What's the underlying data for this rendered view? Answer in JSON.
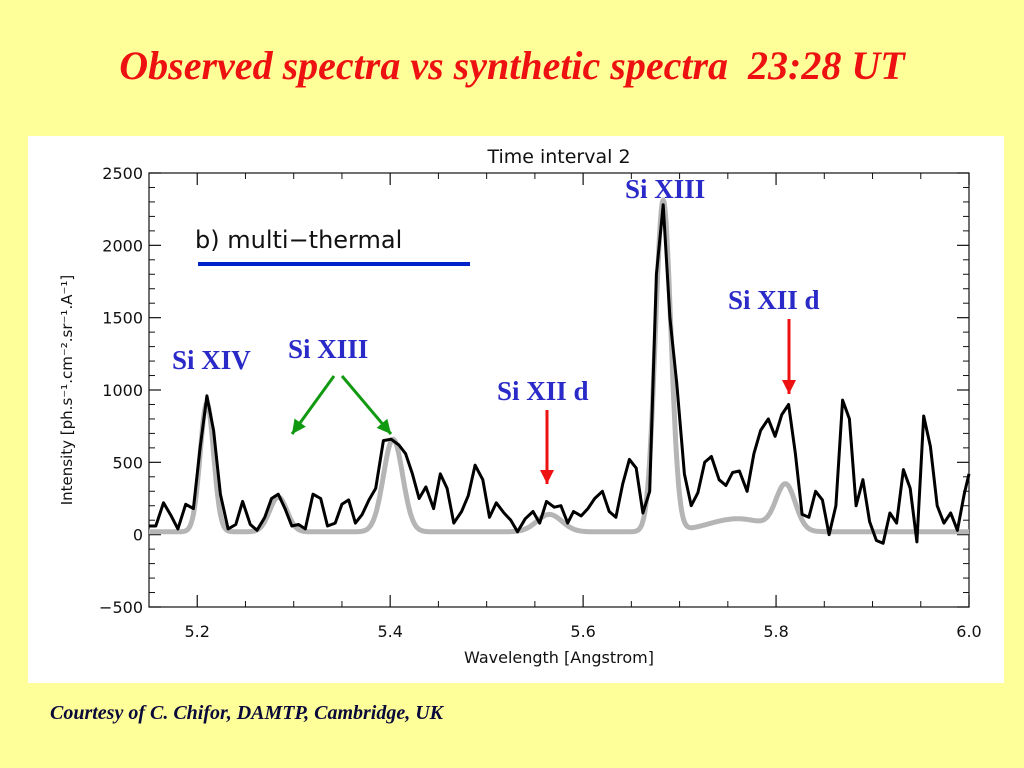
{
  "slide": {
    "title": "Observed spectra vs synthetic spectra  23:28 UT",
    "credit": "Courtesy of C. Chifor, DAMTP, Cambridge, UK"
  },
  "chart_data": {
    "type": "line",
    "title": "Time interval 2",
    "xlabel": "Wavelength  [Angstrom]",
    "ylabel": "Intensity  [ph.s⁻¹.cm⁻².sr⁻¹.A⁻¹]",
    "xlim": [
      5.15,
      6.0
    ],
    "ylim": [
      -500,
      2500
    ],
    "x_ticks": [
      5.2,
      5.4,
      5.6,
      5.8,
      6.0
    ],
    "x_tick_labels": [
      "5.2",
      "5.4",
      "5.6",
      "5.8",
      "6.0"
    ],
    "y_ticks": [
      -500,
      0,
      500,
      1000,
      1500,
      2000,
      2500
    ],
    "y_tick_labels": [
      "−500",
      "0",
      "500",
      "1000",
      "1500",
      "2000",
      "2500"
    ],
    "grid": false,
    "legend": {
      "label": "b) multi−thermal",
      "color": "#0022CC",
      "placement": "top-left"
    },
    "series": [
      {
        "style": "observed",
        "color": "#000000",
        "points": [
          [
            5.15,
            60
          ],
          [
            5.157,
            60
          ],
          [
            5.165,
            220
          ],
          [
            5.173,
            130
          ],
          [
            5.18,
            40
          ],
          [
            5.188,
            210
          ],
          [
            5.196,
            180
          ],
          [
            5.203,
            600
          ],
          [
            5.21,
            960
          ],
          [
            5.217,
            720
          ],
          [
            5.224,
            280
          ],
          [
            5.232,
            40
          ],
          [
            5.24,
            70
          ],
          [
            5.247,
            230
          ],
          [
            5.255,
            70
          ],
          [
            5.262,
            30
          ],
          [
            5.27,
            120
          ],
          [
            5.277,
            250
          ],
          [
            5.284,
            280
          ],
          [
            5.291,
            180
          ],
          [
            5.298,
            60
          ],
          [
            5.305,
            70
          ],
          [
            5.312,
            40
          ],
          [
            5.32,
            280
          ],
          [
            5.328,
            250
          ],
          [
            5.335,
            60
          ],
          [
            5.343,
            80
          ],
          [
            5.35,
            210
          ],
          [
            5.357,
            240
          ],
          [
            5.364,
            80
          ],
          [
            5.371,
            140
          ],
          [
            5.378,
            240
          ],
          [
            5.385,
            320
          ],
          [
            5.393,
            650
          ],
          [
            5.401,
            660
          ],
          [
            5.409,
            620
          ],
          [
            5.416,
            560
          ],
          [
            5.423,
            420
          ],
          [
            5.43,
            250
          ],
          [
            5.437,
            330
          ],
          [
            5.445,
            180
          ],
          [
            5.452,
            420
          ],
          [
            5.459,
            320
          ],
          [
            5.466,
            80
          ],
          [
            5.474,
            160
          ],
          [
            5.481,
            270
          ],
          [
            5.488,
            480
          ],
          [
            5.496,
            380
          ],
          [
            5.503,
            120
          ],
          [
            5.51,
            220
          ],
          [
            5.518,
            150
          ],
          [
            5.525,
            100
          ],
          [
            5.532,
            20
          ],
          [
            5.54,
            110
          ],
          [
            5.548,
            160
          ],
          [
            5.555,
            80
          ],
          [
            5.562,
            230
          ],
          [
            5.57,
            190
          ],
          [
            5.577,
            200
          ],
          [
            5.584,
            80
          ],
          [
            5.59,
            160
          ],
          [
            5.598,
            130
          ],
          [
            5.605,
            180
          ],
          [
            5.612,
            250
          ],
          [
            5.62,
            300
          ],
          [
            5.627,
            160
          ],
          [
            5.634,
            120
          ],
          [
            5.641,
            350
          ],
          [
            5.648,
            520
          ],
          [
            5.655,
            460
          ],
          [
            5.662,
            150
          ],
          [
            5.669,
            300
          ],
          [
            5.676,
            1800
          ],
          [
            5.683,
            2280
          ],
          [
            5.69,
            1500
          ],
          [
            5.697,
            1050
          ],
          [
            5.705,
            420
          ],
          [
            5.712,
            200
          ],
          [
            5.719,
            290
          ],
          [
            5.726,
            500
          ],
          [
            5.733,
            540
          ],
          [
            5.741,
            380
          ],
          [
            5.748,
            340
          ],
          [
            5.755,
            430
          ],
          [
            5.762,
            440
          ],
          [
            5.77,
            300
          ],
          [
            5.777,
            560
          ],
          [
            5.784,
            720
          ],
          [
            5.792,
            800
          ],
          [
            5.799,
            680
          ],
          [
            5.806,
            830
          ],
          [
            5.813,
            900
          ],
          [
            5.82,
            560
          ],
          [
            5.827,
            140
          ],
          [
            5.834,
            120
          ],
          [
            5.841,
            300
          ],
          [
            5.848,
            240
          ],
          [
            5.855,
            0
          ],
          [
            5.862,
            200
          ],
          [
            5.869,
            930
          ],
          [
            5.876,
            800
          ],
          [
            5.883,
            200
          ],
          [
            5.89,
            380
          ],
          [
            5.897,
            90
          ],
          [
            5.904,
            -40
          ],
          [
            5.911,
            -60
          ],
          [
            5.918,
            150
          ],
          [
            5.925,
            80
          ],
          [
            5.932,
            450
          ],
          [
            5.939,
            320
          ],
          [
            5.946,
            -50
          ],
          [
            5.953,
            820
          ],
          [
            5.96,
            610
          ],
          [
            5.967,
            200
          ],
          [
            5.974,
            80
          ],
          [
            5.981,
            150
          ],
          [
            5.988,
            30
          ],
          [
            5.995,
            280
          ],
          [
            6.0,
            420
          ]
        ]
      },
      {
        "style": "synthetic",
        "color": "#B5B5B5",
        "baseline": 20,
        "gaussians": [
          {
            "center": 5.21,
            "amplitude": 890,
            "sigma": 0.007
          },
          {
            "center": 5.284,
            "amplitude": 240,
            "sigma": 0.009
          },
          {
            "center": 5.403,
            "amplitude": 640,
            "sigma": 0.01
          },
          {
            "center": 5.565,
            "amplitude": 120,
            "sigma": 0.013
          },
          {
            "center": 5.683,
            "amplitude": 2290,
            "sigma": 0.008
          },
          {
            "center": 5.76,
            "amplitude": 90,
            "sigma": 0.03
          },
          {
            "center": 5.81,
            "amplitude": 310,
            "sigma": 0.01
          }
        ]
      }
    ],
    "annotations": [
      {
        "label": "Si XIV"
      },
      {
        "label": "Si XIII"
      },
      {
        "label": "Si XIII"
      },
      {
        "label": "Si XII d"
      },
      {
        "label": "Si XII d"
      }
    ],
    "annotation_color": "#2A2AC8",
    "arrow_colors": {
      "green": "#119911",
      "red": "#EE1111"
    }
  }
}
